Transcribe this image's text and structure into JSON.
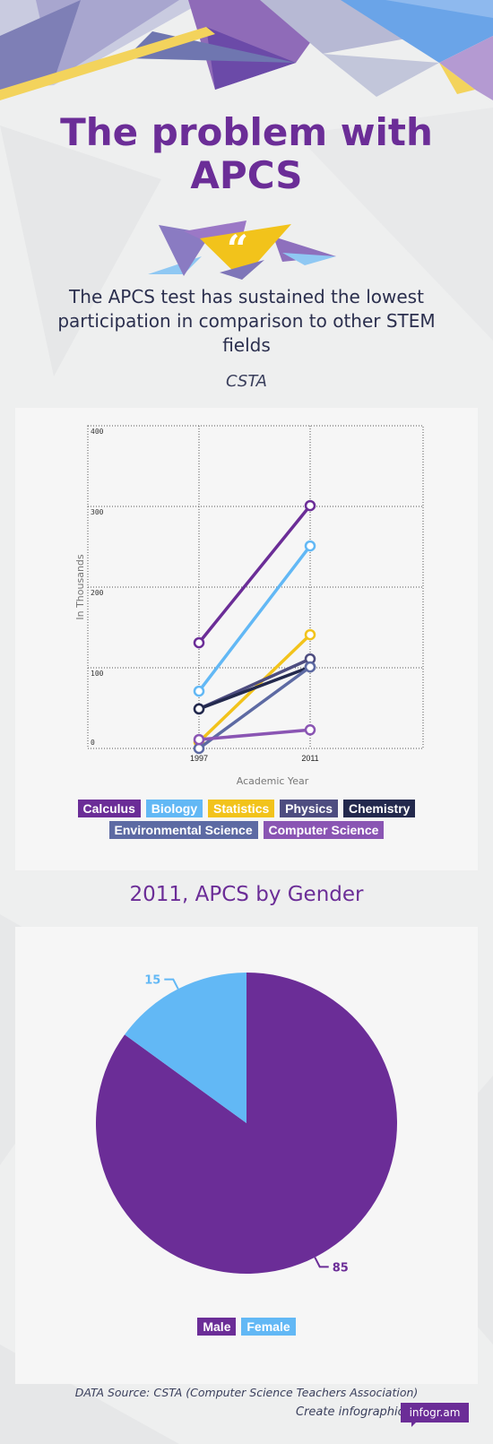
{
  "header": {
    "title_line1": "The problem with",
    "title_line2": "APCS"
  },
  "quote": {
    "text": "The APCS test has sustained the lowest participation in comparison to other STEM fields",
    "author": "CSTA"
  },
  "colors": {
    "purple": "#6b2d97",
    "lightblue": "#62b8f5",
    "yellow": "#f2c31b",
    "slate": "#4e4d80",
    "navy": "#23294d",
    "steel": "#5d6aa3",
    "violet": "#8a55b3"
  },
  "chart_data": [
    {
      "type": "line",
      "ylabel": "In Thousands",
      "xlabel": "Academic Year",
      "x": [
        "1997",
        "2011"
      ],
      "y_ticks": [
        "0",
        "100",
        "200",
        "300",
        "400"
      ],
      "ylim": [
        0,
        400
      ],
      "grid": true,
      "series": [
        {
          "name": "Calculus",
          "values": [
            131,
            301
          ],
          "color": "#6b2d97"
        },
        {
          "name": "Biology",
          "values": [
            71,
            251
          ],
          "color": "#62b8f5"
        },
        {
          "name": "Statistics",
          "values": [
            8,
            141
          ],
          "color": "#f2c31b"
        },
        {
          "name": "Physics",
          "values": [
            49,
            111
          ],
          "color": "#4e4d80"
        },
        {
          "name": "Chemistry",
          "values": [
            49,
            101
          ],
          "color": "#23294d"
        },
        {
          "name": "Environmental Science",
          "values": [
            0,
            101
          ],
          "color": "#5d6aa3"
        },
        {
          "name": "Computer Science",
          "values": [
            11,
            23
          ],
          "color": "#8a55b3"
        }
      ]
    },
    {
      "type": "pie",
      "title": "2011, APCS by Gender",
      "slices": [
        {
          "name": "Male",
          "value": 85,
          "color": "#6b2d97"
        },
        {
          "name": "Female",
          "value": 15,
          "color": "#62b8f5"
        }
      ],
      "legend_placement": "bottom"
    }
  ],
  "legend_line": {
    "row1": [
      "Calculus",
      "Biology",
      "Statistics",
      "Physics",
      "Chemistry"
    ],
    "row2": [
      "Environmental Science",
      "Computer Science"
    ]
  },
  "legend_pie": [
    "Male",
    "Female"
  ],
  "footer": {
    "source": "DATA Source: CSTA (Computer Science Teachers Association)",
    "create": "Create infographics",
    "brand": "infogr.am"
  }
}
